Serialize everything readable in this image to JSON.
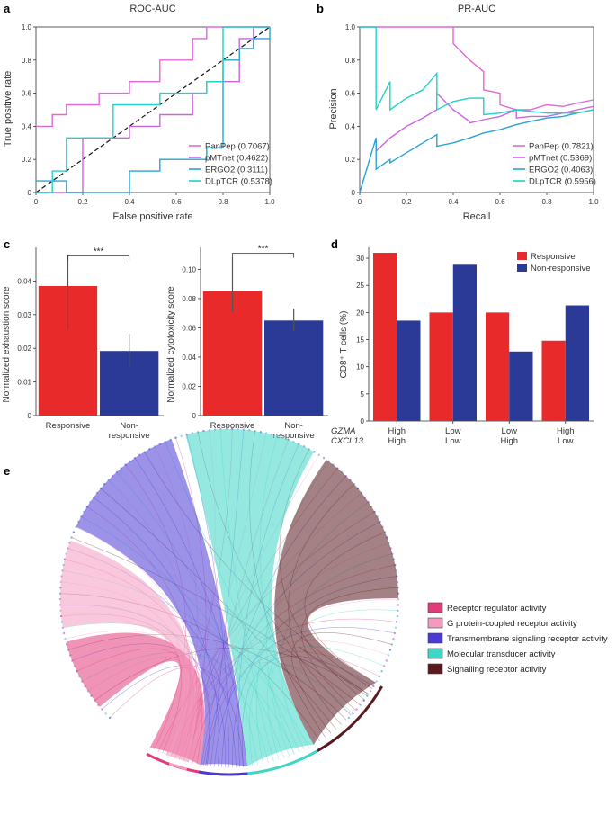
{
  "panels": {
    "a": {
      "label": "a"
    },
    "b": {
      "label": "b"
    },
    "c": {
      "label": "c"
    },
    "d": {
      "label": "d"
    },
    "e": {
      "label": "e"
    }
  },
  "chart_data": [
    {
      "id": "a",
      "type": "line",
      "title": "ROC-AUC",
      "xlabel": "False positive rate",
      "ylabel": "True positive rate",
      "xlim": [
        0,
        1
      ],
      "ylim": [
        0,
        1
      ],
      "xticks": [
        "0",
        "0.2",
        "0.4",
        "0.6",
        "0.8",
        "1.0"
      ],
      "yticks": [
        "0",
        "0.2",
        "0.4",
        "0.6",
        "0.8",
        "1.0"
      ],
      "legend_position": "bottom-right",
      "diagonal": true,
      "series": [
        {
          "name": "PanPep (0.7067)",
          "color": "#e169d6",
          "points": [
            [
              0,
              0.4
            ],
            [
              0.07,
              0.4
            ],
            [
              0.07,
              0.47
            ],
            [
              0.13,
              0.47
            ],
            [
              0.13,
              0.53
            ],
            [
              0.27,
              0.53
            ],
            [
              0.27,
              0.6
            ],
            [
              0.4,
              0.6
            ],
            [
              0.4,
              0.67
            ],
            [
              0.53,
              0.67
            ],
            [
              0.53,
              0.8
            ],
            [
              0.67,
              0.8
            ],
            [
              0.67,
              0.93
            ],
            [
              0.73,
              0.93
            ],
            [
              0.73,
              1.0
            ],
            [
              1.0,
              1.0
            ]
          ]
        },
        {
          "name": "pMTnet (0.4622)",
          "color": "#cc66e0",
          "points": [
            [
              0,
              0
            ],
            [
              0.2,
              0
            ],
            [
              0.2,
              0.33
            ],
            [
              0.4,
              0.33
            ],
            [
              0.4,
              0.4
            ],
            [
              0.53,
              0.4
            ],
            [
              0.53,
              0.47
            ],
            [
              0.67,
              0.47
            ],
            [
              0.67,
              0.6
            ],
            [
              0.73,
              0.6
            ],
            [
              0.73,
              0.67
            ],
            [
              0.87,
              0.67
            ],
            [
              0.87,
              0.93
            ],
            [
              0.93,
              0.93
            ],
            [
              0.93,
              1.0
            ],
            [
              1.0,
              1.0
            ]
          ]
        },
        {
          "name": "ERGO2 (0.3111)",
          "color": "#2aa3d6",
          "points": [
            [
              0,
              0.07
            ],
            [
              0.13,
              0.07
            ],
            [
              0.13,
              0
            ],
            [
              0.4,
              0
            ],
            [
              0.4,
              0.13
            ],
            [
              0.53,
              0.13
            ],
            [
              0.53,
              0.2
            ],
            [
              0.73,
              0.2
            ],
            [
              0.73,
              0.27
            ],
            [
              0.8,
              0.27
            ],
            [
              0.8,
              0.8
            ],
            [
              0.87,
              0.8
            ],
            [
              0.87,
              0.87
            ],
            [
              0.93,
              0.87
            ],
            [
              0.93,
              0.93
            ],
            [
              1.0,
              0.93
            ],
            [
              1.0,
              1.0
            ]
          ]
        },
        {
          "name": "DLpTCR (0.5378)",
          "color": "#22d0c8",
          "points": [
            [
              0,
              0
            ],
            [
              0.07,
              0
            ],
            [
              0.07,
              0.13
            ],
            [
              0.13,
              0.13
            ],
            [
              0.13,
              0.33
            ],
            [
              0.33,
              0.33
            ],
            [
              0.33,
              0.53
            ],
            [
              0.53,
              0.53
            ],
            [
              0.53,
              0.6
            ],
            [
              0.73,
              0.6
            ],
            [
              0.73,
              0.67
            ],
            [
              0.8,
              0.67
            ],
            [
              0.8,
              1.0
            ],
            [
              1.0,
              1.0
            ]
          ]
        }
      ]
    },
    {
      "id": "b",
      "type": "line",
      "title": "PR-AUC",
      "xlabel": "Recall",
      "ylabel": "Precision",
      "xlim": [
        0,
        1
      ],
      "ylim": [
        0,
        1
      ],
      "xticks": [
        "0",
        "0.2",
        "0.4",
        "0.6",
        "0.8",
        "1.0"
      ],
      "yticks": [
        "0",
        "0.2",
        "0.4",
        "0.6",
        "0.8",
        "1.0"
      ],
      "legend_position": "bottom-right",
      "series": [
        {
          "name": "PanPep (0.7821)",
          "color": "#e169d6",
          "points": [
            [
              0,
              1
            ],
            [
              0.4,
              1
            ],
            [
              0.4,
              0.9
            ],
            [
              0.47,
              0.8
            ],
            [
              0.53,
              0.73
            ],
            [
              0.53,
              0.62
            ],
            [
              0.6,
              0.6
            ],
            [
              0.6,
              0.53
            ],
            [
              0.67,
              0.5
            ],
            [
              0.73,
              0.5
            ],
            [
              0.8,
              0.53
            ],
            [
              0.87,
              0.52
            ],
            [
              0.93,
              0.54
            ],
            [
              1.0,
              0.56
            ]
          ]
        },
        {
          "name": "pMTnet (0.5369)",
          "color": "#cc66e0",
          "points": [
            [
              0.07,
              0.33
            ],
            [
              0.07,
              0.25
            ],
            [
              0.13,
              0.33
            ],
            [
              0.2,
              0.4
            ],
            [
              0.27,
              0.45
            ],
            [
              0.33,
              0.5
            ],
            [
              0.33,
              0.6
            ],
            [
              0.4,
              0.5
            ],
            [
              0.47,
              0.43
            ],
            [
              0.47,
              0.42
            ],
            [
              0.53,
              0.44
            ],
            [
              0.6,
              0.46
            ],
            [
              0.67,
              0.5
            ],
            [
              0.67,
              0.45
            ],
            [
              0.73,
              0.46
            ],
            [
              0.8,
              0.46
            ],
            [
              0.87,
              0.48
            ],
            [
              0.93,
              0.5
            ],
            [
              1.0,
              0.52
            ]
          ]
        },
        {
          "name": "ERGO2 (0.4063)",
          "color": "#2aa3d6",
          "points": [
            [
              0,
              0
            ],
            [
              0.07,
              0.33
            ],
            [
              0.07,
              0.14
            ],
            [
              0.13,
              0.2
            ],
            [
              0.13,
              0.18
            ],
            [
              0.2,
              0.24
            ],
            [
              0.27,
              0.3
            ],
            [
              0.33,
              0.35
            ],
            [
              0.33,
              0.28
            ],
            [
              0.4,
              0.3
            ],
            [
              0.47,
              0.33
            ],
            [
              0.53,
              0.36
            ],
            [
              0.6,
              0.38
            ],
            [
              0.67,
              0.41
            ],
            [
              0.73,
              0.43
            ],
            [
              0.8,
              0.45
            ],
            [
              0.87,
              0.46
            ],
            [
              0.93,
              0.48
            ],
            [
              1.0,
              0.5
            ]
          ]
        },
        {
          "name": "DLpTCR (0.5956)",
          "color": "#22d0c8",
          "points": [
            [
              0,
              1
            ],
            [
              0.07,
              1
            ],
            [
              0.07,
              0.5
            ],
            [
              0.13,
              0.67
            ],
            [
              0.13,
              0.5
            ],
            [
              0.2,
              0.57
            ],
            [
              0.27,
              0.62
            ],
            [
              0.33,
              0.72
            ],
            [
              0.33,
              0.5
            ],
            [
              0.4,
              0.55
            ],
            [
              0.47,
              0.57
            ],
            [
              0.53,
              0.57
            ],
            [
              0.53,
              0.47
            ],
            [
              0.6,
              0.48
            ],
            [
              0.67,
              0.5
            ],
            [
              0.73,
              0.49
            ],
            [
              0.8,
              0.48
            ],
            [
              0.87,
              0.48
            ],
            [
              0.93,
              0.48
            ],
            [
              1.0,
              0.5
            ]
          ]
        }
      ]
    },
    {
      "id": "c1",
      "type": "bar",
      "ylabel": "Normalized exhaustion score",
      "categories": [
        "Responsive",
        "Non-\nresponsive"
      ],
      "category_labels": [
        [
          "Responsive"
        ],
        [
          "Non-",
          "responsive"
        ]
      ],
      "values": [
        0.0385,
        0.0192
      ],
      "error_low": [
        0.0255,
        0.0143
      ],
      "error_high": [
        0.0478,
        0.0243
      ],
      "colors": [
        "#e82a2a",
        "#2b3a97"
      ],
      "ylim": [
        0,
        0.05
      ],
      "yticks": [
        0,
        0.01,
        0.02,
        0.03,
        0.04
      ],
      "ytick_labels": [
        "0",
        "0.01",
        "0.02",
        "0.03",
        "0.04"
      ],
      "significance": "***",
      "sig_y": 0.0475
    },
    {
      "id": "c2",
      "type": "bar",
      "ylabel": "Normalized cytotoxicity score",
      "categories": [
        "Responsive",
        "Non-\nresponsive"
      ],
      "category_labels": [
        [
          "Responsive"
        ],
        [
          "Non-",
          "responsive"
        ]
      ],
      "values": [
        0.085,
        0.065
      ],
      "error_low": [
        0.071,
        0.058
      ],
      "error_high": [
        0.108,
        0.073
      ],
      "colors": [
        "#e82a2a",
        "#2b3a97"
      ],
      "ylim": [
        0,
        0.115
      ],
      "yticks": [
        0,
        0.02,
        0.04,
        0.06,
        0.08,
        0.1
      ],
      "ytick_labels": [
        "0",
        "0.02",
        "0.04",
        "0.06",
        "0.08",
        "0.10"
      ],
      "significance": "***",
      "sig_y": 0.111
    },
    {
      "id": "d",
      "type": "bar",
      "ylabel": "CD8⁺ T cells (%)",
      "ylim": [
        0,
        32
      ],
      "yticks": [
        0,
        5,
        10,
        15,
        20,
        25,
        30
      ],
      "ytick_labels": [
        "0",
        "5",
        "10",
        "15",
        "20",
        "25",
        "30"
      ],
      "row_labels": [
        "GZMA",
        "CXCL13"
      ],
      "categories": [
        [
          "High",
          "High"
        ],
        [
          "Low",
          "Low"
        ],
        [
          "Low",
          "High"
        ],
        [
          "High",
          "Low"
        ]
      ],
      "legend_position": "top-right",
      "series": [
        {
          "name": "Responsive",
          "color": "#e82a2a",
          "values": [
            31.0,
            20.0,
            20.0,
            14.8
          ]
        },
        {
          "name": "Non-responsive",
          "color": "#2b3a97",
          "values": [
            18.5,
            28.8,
            12.8,
            21.3
          ]
        }
      ]
    },
    {
      "id": "e",
      "type": "chord",
      "legend_position": "right",
      "categories": [
        {
          "name": "Receptor regulator activity",
          "color": "#e23b7c"
        },
        {
          "name": "G protein-coupled receptor activity",
          "color": "#f49ac1"
        },
        {
          "name": "Transmembrane signaling receptor activity",
          "color": "#4b3ad6"
        },
        {
          "name": "Molecular transducer activity",
          "color": "#3ed6c4"
        },
        {
          "name": "Signalling receptor activity",
          "color": "#5a1a1f"
        }
      ]
    }
  ]
}
